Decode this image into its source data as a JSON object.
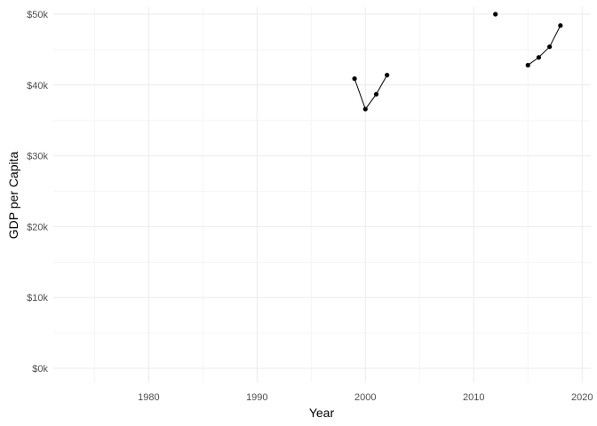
{
  "chart_data": {
    "type": "line",
    "title": "",
    "xlabel": "Year",
    "ylabel": "GDP per Capita",
    "xlim": [
      1971.2,
      2020.8
    ],
    "ylim": [
      -2000,
      51000
    ],
    "x_ticks": [
      {
        "value": 1980,
        "label": "1980"
      },
      {
        "value": 1990,
        "label": "1990"
      },
      {
        "value": 2000,
        "label": "2000"
      },
      {
        "value": 2010,
        "label": "2010"
      },
      {
        "value": 2020,
        "label": "2020"
      }
    ],
    "x_minor_ticks": [
      1975,
      1985,
      1995,
      2005,
      2015
    ],
    "y_ticks": [
      {
        "value": 0,
        "label": "$0k"
      },
      {
        "value": 10000,
        "label": "$10k"
      },
      {
        "value": 20000,
        "label": "$20k"
      },
      {
        "value": 30000,
        "label": "$30k"
      },
      {
        "value": 40000,
        "label": "$40k"
      },
      {
        "value": 50000,
        "label": "$50k"
      }
    ],
    "y_minor_ticks": [
      5000,
      15000,
      25000,
      35000,
      45000
    ],
    "grid": true,
    "segments": [
      [
        {
          "x": 1999,
          "y": 40900
        },
        {
          "x": 2000,
          "y": 36600
        },
        {
          "x": 2001,
          "y": 38700
        },
        {
          "x": 2002,
          "y": 41400
        }
      ],
      [
        {
          "x": 2012,
          "y": 50000
        }
      ],
      [
        {
          "x": 2015,
          "y": 42800
        },
        {
          "x": 2016,
          "y": 43900
        },
        {
          "x": 2017,
          "y": 45400
        },
        {
          "x": 2018,
          "y": 48400
        }
      ]
    ],
    "colors": {
      "line": "#000000",
      "point": "#000000",
      "grid_major": "#ebebeb",
      "grid_minor": "#f5f5f5"
    }
  }
}
